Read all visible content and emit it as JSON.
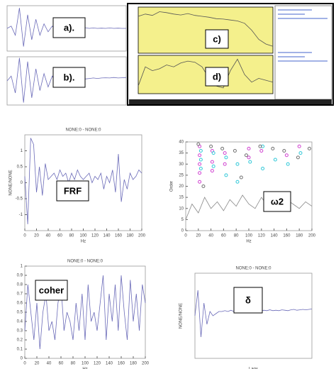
{
  "chart_data": [
    {
      "type": "line",
      "annotation": "a).",
      "ylim": [
        -1,
        1
      ],
      "series": [
        {
          "color": "#6a6ab8",
          "values": [
            0,
            0.1,
            -0.3,
            0.9,
            -0.8,
            0.6,
            -0.5,
            0.4,
            -0.3,
            0.2,
            -0.15,
            0.1,
            -0.1,
            0.05,
            0,
            0.05,
            0,
            0.02,
            0,
            0.03,
            0,
            0.02,
            0,
            0.01,
            0,
            0.02,
            0,
            0.01,
            0,
            0
          ]
        }
      ]
    },
    {
      "type": "line",
      "annotation": "b).",
      "ylim": [
        -1,
        1
      ],
      "series": [
        {
          "color": "#6a6ab8",
          "values": [
            0,
            0.2,
            -0.5,
            0.95,
            -0.9,
            0.8,
            -0.7,
            0.5,
            -0.4,
            0.3,
            -0.25,
            0.2,
            -0.1,
            0.1,
            0.05,
            0.1,
            0.05,
            0.08,
            0.1,
            0.08,
            0.1,
            0.12,
            0.1,
            0.12,
            0.13,
            0.12,
            0.14,
            0.12,
            0.13,
            0.14
          ]
        }
      ]
    },
    {
      "type": "line",
      "annotation": "c)",
      "ylim": [
        0,
        1
      ],
      "plot_bg": "#f4f08c",
      "series": [
        {
          "color": "#555555",
          "values": [
            0.8,
            0.85,
            0.82,
            0.9,
            0.88,
            0.85,
            0.83,
            0.86,
            0.82,
            0.8,
            0.78,
            0.75,
            0.74,
            0.72,
            0.7,
            0.65,
            0.5,
            0.3,
            0.2,
            0.15
          ]
        }
      ]
    },
    {
      "type": "line",
      "annotation": "d)",
      "ylim": [
        0,
        1
      ],
      "plot_bg": "#f4f08c",
      "series": [
        {
          "color": "#555555",
          "values": [
            0.2,
            0.7,
            0.6,
            0.65,
            0.75,
            0.7,
            0.8,
            0.85,
            0.82,
            0.7,
            0.4,
            0.2,
            0.15,
            0.6,
            0.9,
            0.5,
            0.3,
            0.4,
            0.35,
            0.3
          ]
        }
      ]
    },
    {
      "type": "line",
      "title": "NONE:0 - NONE:0",
      "annotation": "FRF",
      "xlabel": "Hz",
      "ylabel": "NONE/NONE",
      "xlim": [
        0,
        200
      ],
      "xticks": [
        0,
        20,
        40,
        60,
        80,
        100,
        120,
        140,
        160,
        180,
        200
      ],
      "ylim": [
        -1.5,
        1.5
      ],
      "yticks": [
        -1,
        -0.5,
        0,
        0.5,
        1
      ],
      "x": [
        0,
        5,
        10,
        15,
        20,
        25,
        30,
        35,
        40,
        45,
        50,
        55,
        60,
        65,
        70,
        75,
        80,
        85,
        90,
        95,
        100,
        105,
        110,
        115,
        120,
        125,
        130,
        135,
        140,
        145,
        150,
        155,
        160,
        165,
        170,
        175,
        180,
        185,
        190,
        195,
        200
      ],
      "series": [
        {
          "color": "#6a6ab8",
          "values": [
            0.2,
            -1.3,
            1.4,
            1.2,
            -0.3,
            0.5,
            -0.4,
            0.6,
            0.1,
            0.2,
            0.3,
            0.1,
            0.4,
            0.2,
            0.3,
            0.0,
            0.3,
            0.1,
            0.4,
            0.2,
            0.1,
            0.2,
            0.3,
            0.0,
            0.2,
            0.1,
            0.3,
            -0.2,
            0.2,
            0.0,
            0.4,
            -0.3,
            0.9,
            -0.6,
            0.1,
            -0.2,
            0.3,
            0.1,
            0.2,
            0.4,
            0.3
          ]
        }
      ]
    },
    {
      "type": "scatter",
      "annotation": "ω2",
      "xlabel": "Hz",
      "ylabel": "Order",
      "xlim": [
        0,
        200
      ],
      "xticks": [
        0,
        20,
        40,
        60,
        80,
        100,
        120,
        140,
        160,
        180,
        200
      ],
      "ylim": [
        0,
        40
      ],
      "yticks": [
        0,
        5,
        10,
        15,
        20,
        25,
        30,
        35,
        40
      ],
      "series": [
        {
          "type": "line",
          "color": "#888888",
          "x": [
            0,
            10,
            20,
            30,
            40,
            50,
            60,
            70,
            80,
            90,
            100,
            110,
            120,
            130,
            140,
            150,
            160,
            170,
            180,
            190,
            200
          ],
          "values": [
            5,
            12,
            8,
            15,
            10,
            13,
            9,
            14,
            11,
            16,
            12,
            10,
            15,
            11,
            13,
            9,
            14,
            12,
            10,
            13,
            11
          ]
        },
        {
          "color": "#d040d0",
          "x": [
            22,
            22,
            22,
            22,
            22,
            42,
            42,
            42,
            62,
            62,
            100,
            100,
            120,
            160,
            180
          ],
          "values": [
            38,
            34,
            30,
            26,
            22,
            36,
            31,
            27,
            35,
            30,
            37,
            33,
            36,
            34,
            38
          ]
        },
        {
          "color": "#30c8d8",
          "x": [
            24,
            24,
            24,
            44,
            44,
            64,
            64,
            82,
            82,
            102,
            122,
            122,
            142,
            162,
            182
          ],
          "values": [
            36,
            32,
            28,
            35,
            29,
            33,
            25,
            30,
            22,
            31,
            38,
            28,
            32,
            30,
            35
          ]
        },
        {
          "color": "#707070",
          "x": [
            20,
            40,
            58,
            78,
            96,
            118,
            138,
            156,
            178,
            196,
            28,
            88
          ],
          "values": [
            39,
            38,
            37,
            36,
            34,
            38,
            37,
            36,
            33,
            37,
            20,
            24
          ]
        }
      ]
    },
    {
      "type": "line",
      "title": "NONE:0 - NONE:0",
      "annotation": "coher",
      "xlabel": "Hz",
      "xlim": [
        0,
        200
      ],
      "xticks": [
        0,
        20,
        40,
        60,
        80,
        100,
        120,
        140,
        160,
        180,
        200
      ],
      "ylim": [
        0,
        1
      ],
      "yticks": [
        0,
        0.1,
        0.2,
        0.3,
        0.4,
        0.5,
        0.6,
        0.7,
        0.8,
        0.9,
        1
      ],
      "x": [
        0,
        5,
        10,
        15,
        20,
        25,
        30,
        35,
        40,
        45,
        50,
        55,
        60,
        65,
        70,
        75,
        80,
        85,
        90,
        95,
        100,
        105,
        110,
        115,
        120,
        125,
        130,
        135,
        140,
        145,
        150,
        155,
        160,
        165,
        170,
        175,
        180,
        185,
        190,
        195,
        200
      ],
      "series": [
        {
          "color": "#6a6ab8",
          "values": [
            0.3,
            0.8,
            0.5,
            0.2,
            0.6,
            0.1,
            0.5,
            0.7,
            0.3,
            0.4,
            0.2,
            0.6,
            0.8,
            0.3,
            0.5,
            0.4,
            0.2,
            0.6,
            0.3,
            0.7,
            0.2,
            0.8,
            0.4,
            0.5,
            0.3,
            0.6,
            0.9,
            0.2,
            0.7,
            0.4,
            0.8,
            0.3,
            0.9,
            0.5,
            0.2,
            0.85,
            0.4,
            0.7,
            0.3,
            0.8,
            0.6
          ]
        }
      ]
    },
    {
      "type": "line",
      "title": "NONE:0 - NONE:0",
      "annotation": "δ",
      "xlabel": "Lags",
      "ylabel": "NONE/NONE",
      "ylim": [
        -1,
        1
      ],
      "series": [
        {
          "color": "#6a6ab8",
          "values": [
            0,
            0.6,
            -0.5,
            0.3,
            -0.2,
            0.1,
            0,
            0.05,
            0.1,
            0.1,
            0.12,
            0.1,
            0.13,
            0.1,
            0.12,
            0.11,
            0.13,
            0.12,
            0.1,
            0.12,
            0.13,
            0.12,
            0.11,
            0.13,
            0.12,
            0.14,
            0.12,
            0.13,
            0.12,
            0.14,
            0.13,
            0.12,
            0.14,
            0.15,
            0.13,
            0.14,
            0.15,
            0.14,
            0.15,
            0.16
          ]
        }
      ]
    }
  ]
}
